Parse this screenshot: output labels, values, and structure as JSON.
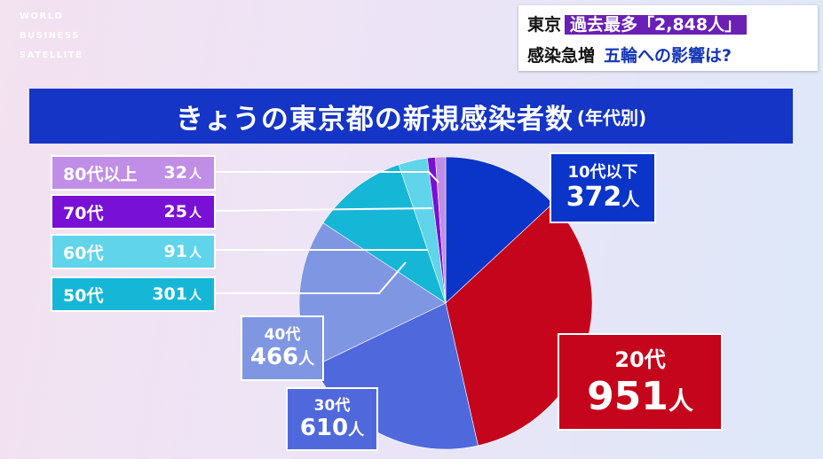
{
  "logo": {
    "line1": "WORLD",
    "line2": "BUSINESS",
    "line3": "SATELLITE"
  },
  "news": {
    "line1_prefix": "東京",
    "line1_highlight": "過去最多「2,848人」",
    "line2_prefix": "感染急増",
    "line2_blue": "五輪への影響は?"
  },
  "chart_data": {
    "type": "pie",
    "title": "きょうの東京都の新規感染者数",
    "subtitle": "(年代別)",
    "unit": "人",
    "slices": [
      {
        "label": "10代以下",
        "value": 372,
        "color": "#0b34c9"
      },
      {
        "label": "20代",
        "value": 951,
        "color": "#c5051c"
      },
      {
        "label": "30代",
        "value": 610,
        "color": "#4f68dc"
      },
      {
        "label": "40代",
        "value": 466,
        "color": "#7f96e2"
      },
      {
        "label": "50代",
        "value": 301,
        "color": "#16b7d6"
      },
      {
        "label": "60代",
        "value": 91,
        "color": "#5fd4ea"
      },
      {
        "label": "70代",
        "value": 25,
        "color": "#7810d6"
      },
      {
        "label": "80代以上",
        "value": 32,
        "color": "#c08ee6"
      }
    ]
  },
  "labels": {
    "s80": {
      "age": "80代以上",
      "count": "32",
      "unit": "人"
    },
    "s70": {
      "age": "70代",
      "count": "25",
      "unit": "人"
    },
    "s60": {
      "age": "60代",
      "count": "91",
      "unit": "人"
    },
    "s50": {
      "age": "50代",
      "count": "301",
      "unit": "人"
    },
    "s40": {
      "age": "40代",
      "count": "466",
      "unit": "人"
    },
    "s30": {
      "age": "30代",
      "count": "610",
      "unit": "人"
    },
    "s20": {
      "age": "20代",
      "count": "951",
      "unit": "人"
    },
    "s10": {
      "age": "10代以下",
      "count": "372",
      "unit": "人"
    }
  }
}
